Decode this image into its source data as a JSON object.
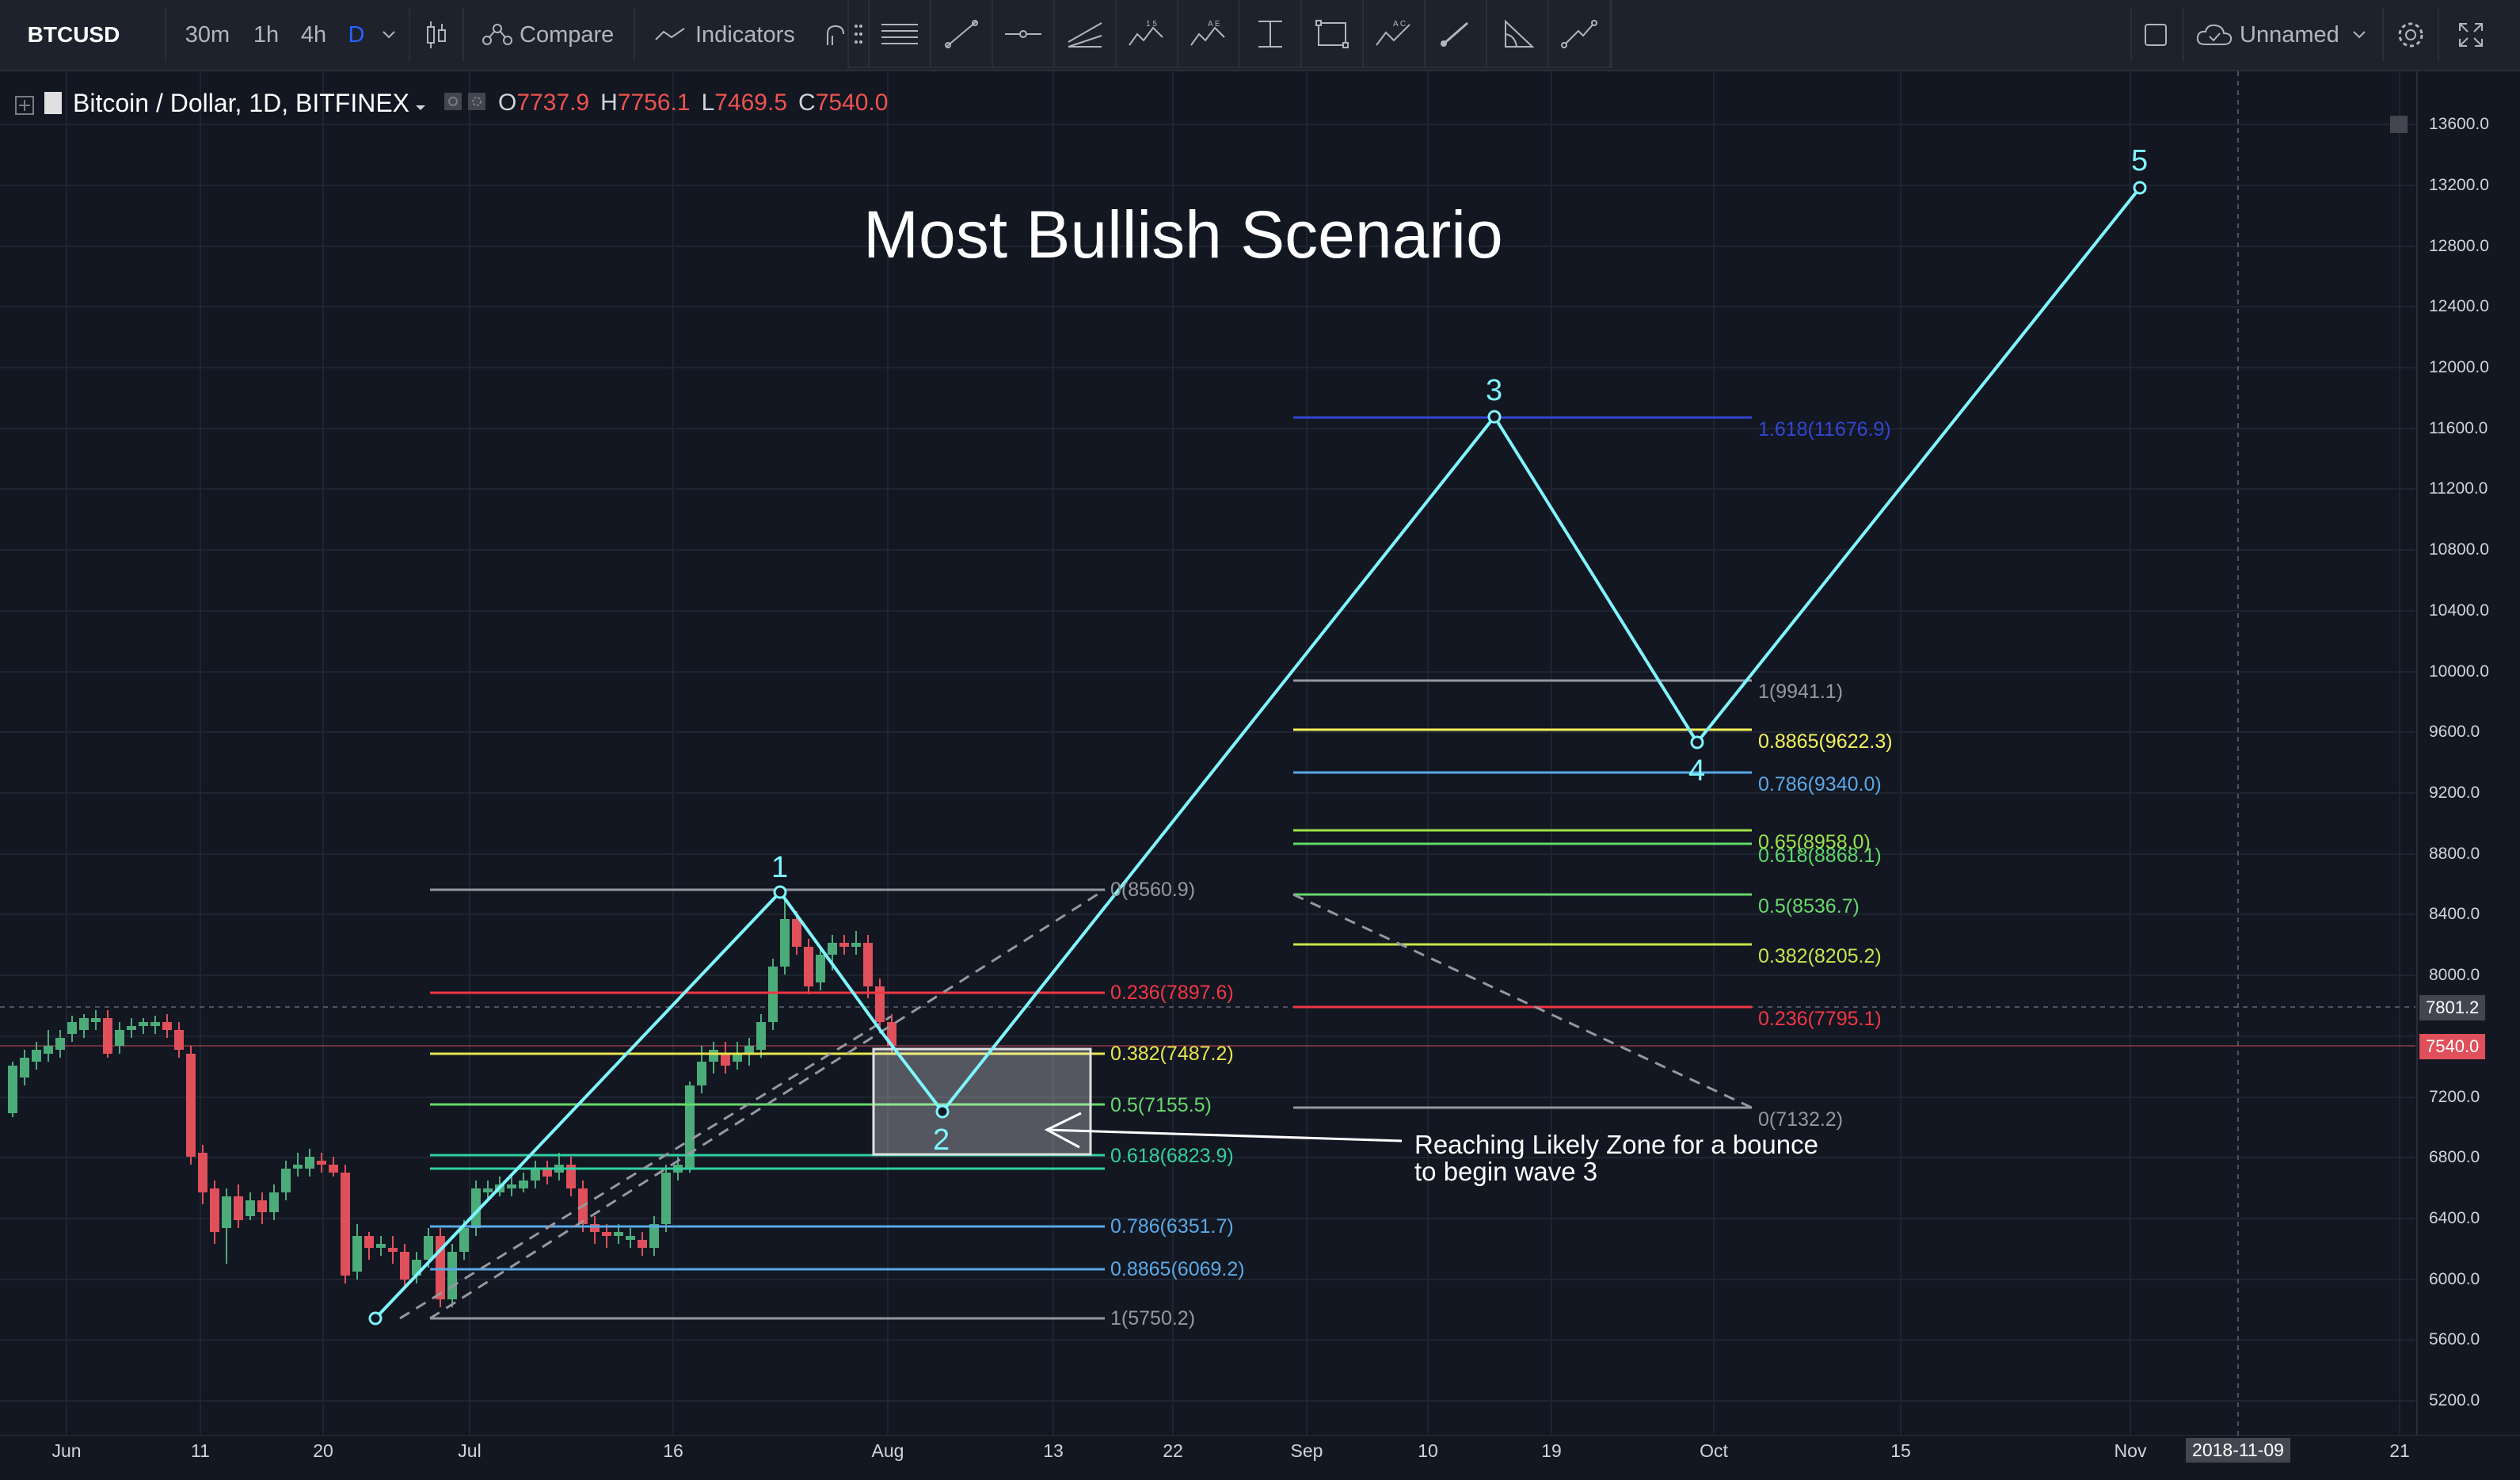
{
  "toolbar": {
    "symbol": "BTCUSD",
    "intervals": [
      "30m",
      "1h",
      "4h",
      "D"
    ],
    "active_interval": "D",
    "compare_label": "Compare",
    "indicators_label": "Indicators",
    "layout_name": "Unnamed"
  },
  "legend": {
    "title": "Bitcoin / Dollar, 1D, BITFINEX",
    "open_label": "O",
    "open": "7737.9",
    "high_label": "H",
    "high": "7756.1",
    "low_label": "L",
    "low": "7469.5",
    "close_label": "C",
    "close": "7540.0"
  },
  "annotations": {
    "scenario_title": "Most Bullish Scenario",
    "note_line1": "Reaching Likely Zone for a  bounce",
    "note_line2": "to begin wave 3",
    "waves": [
      "1",
      "2",
      "3",
      "4",
      "5"
    ]
  },
  "fib_left": [
    {
      "label": "0(8560.9)",
      "color": "#9598a1"
    },
    {
      "label": "0.236(7897.6)",
      "color": "#f23645"
    },
    {
      "label": "0.382(7487.2)",
      "color": "#e6e64c"
    },
    {
      "label": "0.5(7155.5)",
      "color": "#66d96a"
    },
    {
      "label": "0.618(6823.9)",
      "color": "#2fd2a0"
    },
    {
      "label": "0.786(6351.7)",
      "color": "#5aa9e6"
    },
    {
      "label": "0.8865(6069.2)",
      "color": "#5aa9e6"
    },
    {
      "label": "1(5750.2)",
      "color": "#9598a1"
    }
  ],
  "fib_right": [
    {
      "label": "1.618(11676.9)",
      "color": "#3346d4"
    },
    {
      "label": "1(9941.1)",
      "color": "#9598a1"
    },
    {
      "label": "0.8865(9622.3)",
      "color": "#f5f55a"
    },
    {
      "label": "0.786(9340.0)",
      "color": "#5aa9e6"
    },
    {
      "label": "0.65(8958.0)",
      "color": "#9be34a"
    },
    {
      "label": "0.618(8868.1)",
      "color": "#5ed86a"
    },
    {
      "label": "0.5(8536.7)",
      "color": "#66d96a"
    },
    {
      "label": "0.382(8205.2)",
      "color": "#c8e64c"
    },
    {
      "label": "0.236(7795.1)",
      "color": "#f23645"
    },
    {
      "label": "0(7132.2)",
      "color": "#9598a1"
    }
  ],
  "price_axis": [
    "13600.0",
    "13200.0",
    "12800.0",
    "12400.0",
    "12000.0",
    "11600.0",
    "11200.0",
    "10800.0",
    "10400.0",
    "10000.0",
    "9600.0",
    "9200.0",
    "8800.0",
    "8400.0",
    "8000.0",
    "7200.0",
    "6800.0",
    "6400.0",
    "6000.0",
    "5600.0",
    "5200.0"
  ],
  "price_tags": {
    "crosshair": "7801.2",
    "last": "7540.0"
  },
  "time_axis": [
    "Jun",
    "11",
    "20",
    "Jul",
    "16",
    "Aug",
    "13",
    "22",
    "Sep",
    "10",
    "19",
    "Oct",
    "15",
    "Nov",
    "2018-11-09",
    "21"
  ],
  "colors": {
    "background": "#131722",
    "wave_line": "#7ff6ff",
    "up_candle": "#4bac7a",
    "down_candle": "#e0505a"
  },
  "icons": [
    "candles-icon",
    "compare-icon",
    "indicators-icon",
    "square-icon",
    "cloud-icon",
    "gear-icon",
    "fullscreen-icon"
  ]
}
